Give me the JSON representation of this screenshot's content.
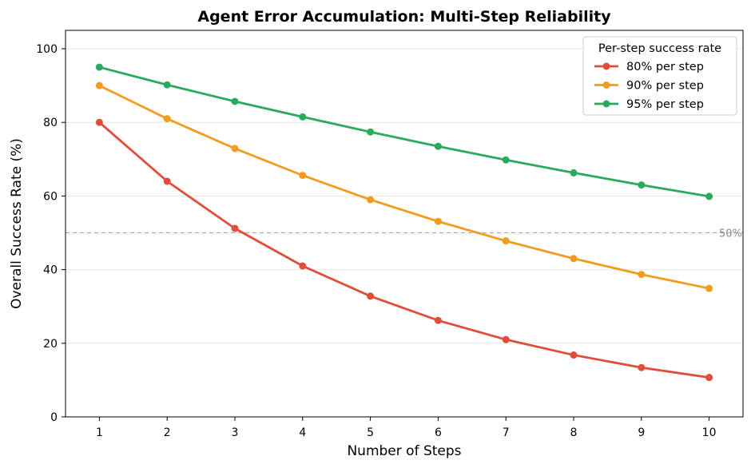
{
  "chart_data": {
    "type": "line",
    "title": "Agent Error Accumulation: Multi-Step Reliability",
    "xlabel": "Number of Steps",
    "ylabel": "Overall Success Rate (%)",
    "x": [
      1,
      2,
      3,
      4,
      5,
      6,
      7,
      8,
      9,
      10
    ],
    "xlim": [
      0.5,
      10.5
    ],
    "ylim": [
      0,
      105
    ],
    "xticks": [
      1,
      2,
      3,
      4,
      5,
      6,
      7,
      8,
      9,
      10
    ],
    "yticks": [
      0,
      20,
      40,
      60,
      80,
      100
    ],
    "grid": "horizontal",
    "legend": {
      "title": "Per-step success rate",
      "position": "top-right"
    },
    "reference_line": {
      "y": 50,
      "label": "50%",
      "color": "#aaaaaa"
    },
    "series": [
      {
        "name": "80% per step",
        "color": "#e04e39",
        "values": [
          80,
          64,
          51.2,
          41,
          32.8,
          26.2,
          21,
          16.8,
          13.4,
          10.7
        ]
      },
      {
        "name": "90% per step",
        "color": "#f29c1f",
        "values": [
          90,
          81,
          72.9,
          65.6,
          59,
          53.1,
          47.8,
          43,
          38.7,
          34.9
        ]
      },
      {
        "name": "95% per step",
        "color": "#2aaa5d",
        "values": [
          95,
          90.2,
          85.7,
          81.5,
          77.4,
          73.5,
          69.8,
          66.3,
          63,
          59.9
        ]
      }
    ]
  }
}
